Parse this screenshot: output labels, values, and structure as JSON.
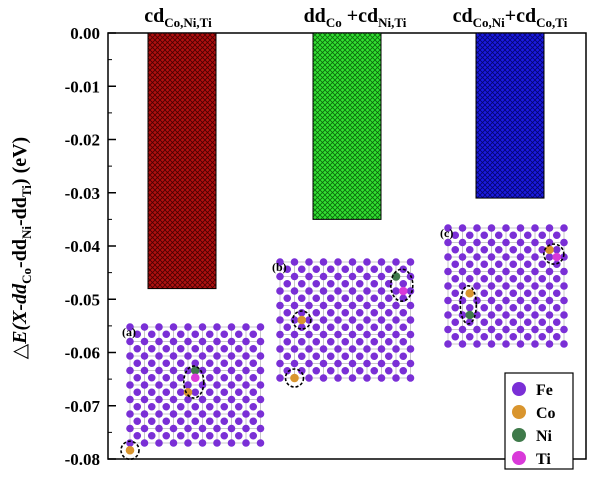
{
  "chart_data": {
    "type": "bar",
    "title": "",
    "xlabel": "",
    "ylabel": {
      "prefix": "△E(X-dd",
      "sub1": "Co",
      "mid1": "-dd",
      "sub2": "Ni",
      "mid2": "-dd",
      "sub3": "Ti",
      "suffix": ") (eV)"
    },
    "ylim": [
      -0.08,
      0.0
    ],
    "yticks": [
      0.0,
      -0.01,
      -0.02,
      -0.03,
      -0.04,
      -0.05,
      -0.06,
      -0.07,
      -0.08
    ],
    "ytick_labels": [
      "0.00",
      "-0.01",
      "-0.02",
      "-0.03",
      "-0.04",
      "-0.05",
      "-0.06",
      "-0.07",
      "-0.08"
    ],
    "categories": [
      {
        "base": "cd",
        "sub": "Co,Ni,Ti"
      },
      {
        "base": "dd",
        "sub": "Co",
        "mid": " +cd",
        "sub2": "Ni,Ti"
      },
      {
        "base": "cd",
        "sub": "Co,Ni",
        "mid": "+cd",
        "sub2": "Co,Ti"
      }
    ],
    "values": [
      -0.048,
      -0.035,
      -0.031
    ],
    "bar_colors": [
      "#b01010",
      "#22dd22",
      "#1a1ae0"
    ],
    "panels": [
      {
        "label": "(a)",
        "bar": 0
      },
      {
        "label": "(b)",
        "bar": 1
      },
      {
        "label": "(c)",
        "bar": 2
      }
    ],
    "legend": {
      "location": "bottom-right",
      "entries": [
        {
          "name": "Fe",
          "color": "#7a2fd6"
        },
        {
          "name": "Co",
          "color": "#d9952e"
        },
        {
          "name": "Ni",
          "color": "#3f7a4a"
        },
        {
          "name": "Ti",
          "color": "#d93ad9"
        }
      ]
    }
  }
}
